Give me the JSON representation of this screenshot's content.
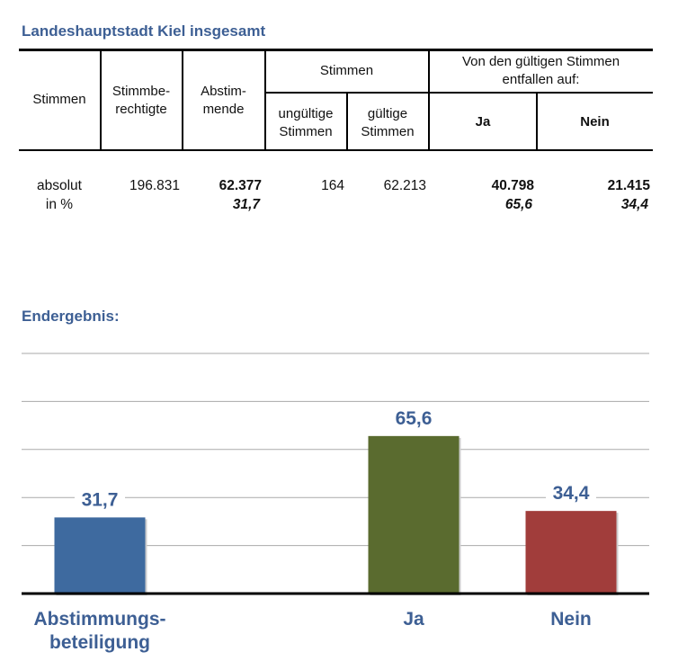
{
  "title": "Landeshauptstadt Kiel insgesamt",
  "table": {
    "headers": {
      "stimmen": "Stimmen",
      "stimmberechtigte": "Stimmbe-\nrechtigte",
      "abstimmende": "Abstim-\nmende",
      "stimmen_group": "Stimmen",
      "ungueltige": "ungültige\nStimmen",
      "gueltige": "gültige\nStimmen",
      "entfallen_group": "Von den gültigen Stimmen\nentfallen auf:",
      "ja": "Ja",
      "nein": "Nein"
    },
    "rows": {
      "absolut_label": "absolut",
      "prozent_label": "in %",
      "stimmberechtigte": "196.831",
      "abstimmende": "62.377",
      "abstimmende_pct": "31,7",
      "ungueltige": "164",
      "gueltige": "62.213",
      "ja": "40.798",
      "ja_pct": "65,6",
      "nein": "21.415",
      "nein_pct": "34,4"
    }
  },
  "chart_title": "Endergebnis:",
  "chart_data": {
    "type": "bar",
    "categories": [
      "Abstimmungs-\nbeteiligung",
      "Ja",
      "Nein"
    ],
    "values": [
      31.7,
      65.6,
      34.4
    ],
    "data_labels": [
      "31,7",
      "65,6",
      "34,4"
    ],
    "colors": [
      "#3e6a9f",
      "#5a6b2f",
      "#a13d3b"
    ],
    "ylim": [
      0,
      100
    ],
    "grid_step": 20,
    "grid": true
  }
}
